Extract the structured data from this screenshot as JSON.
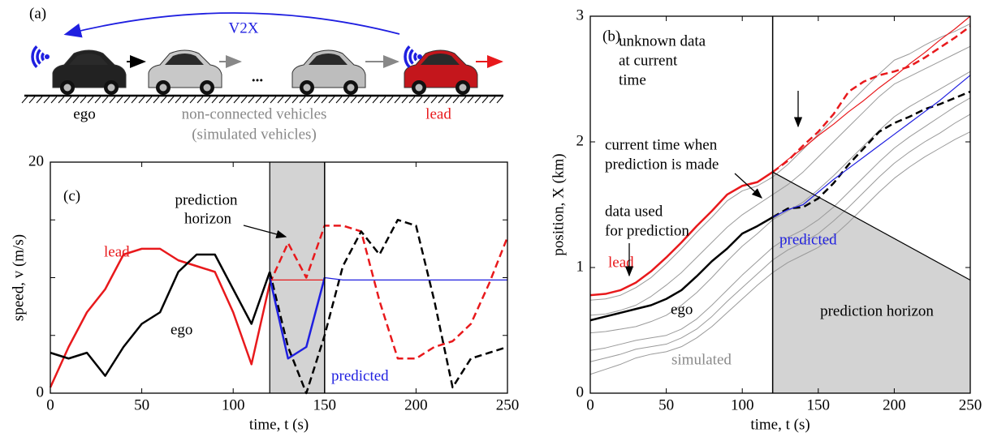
{
  "diagram": {
    "label": "(a)",
    "link": "V2X",
    "dots": "...",
    "ego": "ego",
    "middle": [
      "non-connected vehicles",
      "(simulated vehicles)"
    ],
    "lead": "lead"
  },
  "chart_data": [
    {
      "type": "line",
      "xlabel": "time, t (s)",
      "ylabel": "speed, v (m/s)",
      "x": [
        0,
        10,
        20,
        30,
        40,
        50,
        60,
        70,
        80,
        90,
        100,
        110,
        120,
        130,
        140,
        150,
        160,
        170,
        180,
        190,
        200,
        210,
        220,
        230,
        240,
        250
      ],
      "xlim": [
        0,
        250
      ],
      "xticks": [
        0,
        50,
        100,
        150,
        200,
        250
      ],
      "ylim": [
        0,
        20
      ],
      "yticks": [
        0,
        20
      ],
      "yminor": [
        5,
        10,
        15
      ],
      "shade": [
        120,
        150
      ],
      "vline": 150,
      "series": [
        {
          "name": "lead",
          "color": "#e8191c",
          "width": 2.5,
          "values": [
            0.5,
            4,
            7,
            9,
            12,
            12.5,
            12.5,
            11.5,
            11,
            10.5,
            7,
            2.5,
            9.5,
            null,
            null,
            null,
            null,
            null,
            null,
            null,
            null,
            null,
            null,
            null,
            null,
            null
          ]
        },
        {
          "color": "#e8191c",
          "width": 2.5,
          "dash": true,
          "values": [
            null,
            null,
            null,
            null,
            null,
            null,
            null,
            null,
            null,
            null,
            null,
            null,
            9.5,
            13,
            10,
            14.5,
            14.5,
            14,
            8,
            3,
            3,
            4,
            4.5,
            6,
            9.5,
            13.5
          ]
        },
        {
          "name": "ego",
          "color": "#000000",
          "width": 2.5,
          "values": [
            3.5,
            3,
            3.5,
            1.5,
            4,
            6,
            7,
            10.5,
            12,
            12,
            9,
            6,
            10.5,
            null,
            null,
            null,
            null,
            null,
            null,
            null,
            null,
            null,
            null,
            null,
            null,
            null
          ]
        },
        {
          "color": "#000000",
          "width": 2.5,
          "dash": true,
          "values": [
            null,
            null,
            null,
            null,
            null,
            null,
            null,
            null,
            null,
            null,
            null,
            null,
            10.5,
            4,
            0,
            5,
            11,
            14,
            12,
            15,
            14.5,
            8,
            0.5,
            3,
            3.5,
            4
          ]
        },
        {
          "color": "#e8191c",
          "width": 1.2,
          "values": [
            null,
            null,
            null,
            null,
            null,
            null,
            null,
            null,
            null,
            null,
            null,
            null,
            9.8,
            9.8,
            9.8,
            9.8,
            null,
            null,
            null,
            null,
            null,
            null,
            null,
            null,
            null,
            null
          ]
        },
        {
          "name": "predicted",
          "color": "#1f1fe0",
          "width": 2.5,
          "values": [
            null,
            null,
            null,
            null,
            null,
            null,
            null,
            null,
            null,
            null,
            null,
            null,
            10,
            3,
            4,
            10,
            null,
            null,
            null,
            null,
            null,
            null,
            null,
            null,
            null,
            null
          ]
        },
        {
          "color": "#1f1fe0",
          "width": 1.2,
          "values": [
            null,
            null,
            null,
            null,
            null,
            null,
            null,
            null,
            null,
            null,
            null,
            null,
            null,
            null,
            null,
            10,
            9.8,
            9.8,
            9.8,
            9.8,
            9.8,
            9.8,
            9.8,
            9.8,
            9.8,
            9.8
          ]
        }
      ],
      "annotations": [
        {
          "text": "(c)"
        },
        {
          "text": "prediction"
        },
        {
          "text": "horizon"
        }
      ]
    },
    {
      "type": "line",
      "xlabel": "time, t (s)",
      "ylabel": "position, X (km)",
      "x": [
        0,
        10,
        20,
        30,
        40,
        50,
        60,
        70,
        80,
        90,
        100,
        110,
        120,
        130,
        140,
        150,
        160,
        170,
        180,
        190,
        200,
        210,
        220,
        230,
        240,
        250
      ],
      "xlim": [
        0,
        250
      ],
      "xticks": [
        0,
        50,
        100,
        150,
        200,
        250
      ],
      "ylim": [
        0,
        3
      ],
      "yticks": [
        0,
        1,
        2,
        3
      ],
      "shade_polygon": {
        "x": [
          120,
          250,
          250,
          120
        ],
        "y": [
          1.76,
          0.9,
          0,
          0
        ]
      },
      "vline": 120,
      "series": [
        {
          "color": "#9a9a9a",
          "width": 1,
          "values": [
            0.74,
            0.75,
            0.78,
            0.84,
            0.92,
            1.03,
            1.15,
            1.28,
            1.4,
            1.53,
            1.61,
            1.65,
            1.72,
            1.82,
            1.94,
            2.06,
            2.18,
            2.3,
            2.42,
            2.54,
            2.65,
            2.7,
            2.77,
            2.83,
            2.88,
            2.94
          ]
        },
        {
          "color": "#9a9a9a",
          "width": 1,
          "values": [
            0.62,
            0.63,
            0.66,
            0.7,
            0.77,
            0.86,
            0.96,
            1.08,
            1.2,
            1.32,
            1.42,
            1.5,
            1.58,
            1.66,
            1.76,
            1.88,
            2,
            2.12,
            2.24,
            2.36,
            2.46,
            2.52,
            2.58,
            2.64,
            2.7,
            2.76
          ]
        },
        {
          "color": "#9a9a9a",
          "width": 1,
          "values": [
            0.48,
            0.49,
            0.51,
            0.53,
            0.57,
            0.62,
            0.7,
            0.8,
            0.92,
            1.05,
            1.17,
            1.27,
            1.38,
            1.45,
            1.52,
            1.62,
            1.73,
            1.85,
            1.97,
            2.09,
            2.2,
            2.28,
            2.35,
            2.42,
            2.49,
            2.56
          ]
        },
        {
          "color": "#9a9a9a",
          "width": 1,
          "values": [
            0.34,
            0.36,
            0.39,
            0.42,
            0.44,
            0.46,
            0.51,
            0.59,
            0.7,
            0.82,
            0.94,
            1.05,
            1.16,
            1.24,
            1.3,
            1.38,
            1.48,
            1.6,
            1.72,
            1.84,
            1.95,
            2.04,
            2.12,
            2.2,
            2.28,
            2.35
          ]
        },
        {
          "color": "#9a9a9a",
          "width": 1,
          "values": [
            0.25,
            0.28,
            0.31,
            0.35,
            0.37,
            0.39,
            0.44,
            0.51,
            0.61,
            0.73,
            0.84,
            0.95,
            1.06,
            1.14,
            1.2,
            1.27,
            1.37,
            1.48,
            1.6,
            1.72,
            1.83,
            1.92,
            2,
            2.07,
            2.15,
            2.22
          ]
        },
        {
          "name": "simulated",
          "color": "#9a9a9a",
          "width": 1,
          "values": [
            0.15,
            0.19,
            0.23,
            0.28,
            0.31,
            0.33,
            0.37,
            0.44,
            0.53,
            0.64,
            0.75,
            0.86,
            0.96,
            1.04,
            1.1,
            1.16,
            1.25,
            1.36,
            1.48,
            1.6,
            1.71,
            1.8,
            1.88,
            1.95,
            2.02,
            2.08
          ]
        },
        {
          "name": "lead",
          "color": "#e8191c",
          "width": 2.5,
          "values": [
            0.78,
            0.79,
            0.82,
            0.88,
            0.97,
            1.08,
            1.2,
            1.33,
            1.45,
            1.58,
            1.65,
            1.68,
            1.76,
            null,
            null,
            null,
            null,
            null,
            null,
            null,
            null,
            null,
            null,
            null,
            null,
            null
          ]
        },
        {
          "color": "#e8191c",
          "width": 2.5,
          "dash": true,
          "values": [
            null,
            null,
            null,
            null,
            null,
            null,
            null,
            null,
            null,
            null,
            null,
            null,
            1.76,
            1.85,
            1.97,
            2.08,
            2.22,
            2.4,
            2.48,
            2.53,
            2.56,
            2.6,
            2.67,
            2.75,
            2.83,
            2.92
          ]
        },
        {
          "color": "#e8191c",
          "width": 1.2,
          "values": [
            null,
            null,
            null,
            null,
            null,
            null,
            null,
            null,
            null,
            null,
            null,
            null,
            1.76,
            1.86,
            1.95,
            2.05,
            2.14,
            2.24,
            2.33,
            2.43,
            2.52,
            2.62,
            2.71,
            2.81,
            2.9,
            3
          ]
        },
        {
          "name": "ego",
          "color": "#000000",
          "width": 2.5,
          "values": [
            0.58,
            0.61,
            0.64,
            0.67,
            0.7,
            0.75,
            0.82,
            0.93,
            1.05,
            1.15,
            1.27,
            1.33,
            1.4,
            null,
            null,
            null,
            null,
            null,
            null,
            null,
            null,
            null,
            null,
            null,
            null,
            null
          ]
        },
        {
          "color": "#000000",
          "width": 2.5,
          "dash": true,
          "values": [
            null,
            null,
            null,
            null,
            null,
            null,
            null,
            null,
            null,
            null,
            null,
            null,
            1.4,
            1.47,
            1.48,
            1.55,
            1.67,
            1.82,
            1.95,
            2.08,
            2.15,
            2.2,
            2.26,
            2.3,
            2.35,
            2.4
          ]
        },
        {
          "name": "predicted",
          "color": "#1f1fe0",
          "width": 1.2,
          "values": [
            null,
            null,
            null,
            null,
            null,
            null,
            null,
            null,
            null,
            null,
            null,
            null,
            1.4,
            1.46,
            1.5,
            1.6,
            1.7,
            1.79,
            1.88,
            1.97,
            2.06,
            2.15,
            2.24,
            2.33,
            2.43,
            2.53
          ]
        }
      ],
      "annotations": [
        {
          "text": "(b)"
        },
        {
          "text": "unknown data"
        },
        {
          "text": "at current"
        },
        {
          "text": "time"
        },
        {
          "text": "current time when"
        },
        {
          "text": "prediction is made"
        },
        {
          "text": "data used"
        },
        {
          "text": "for prediction"
        },
        {
          "text": "prediction horizon"
        }
      ]
    }
  ]
}
